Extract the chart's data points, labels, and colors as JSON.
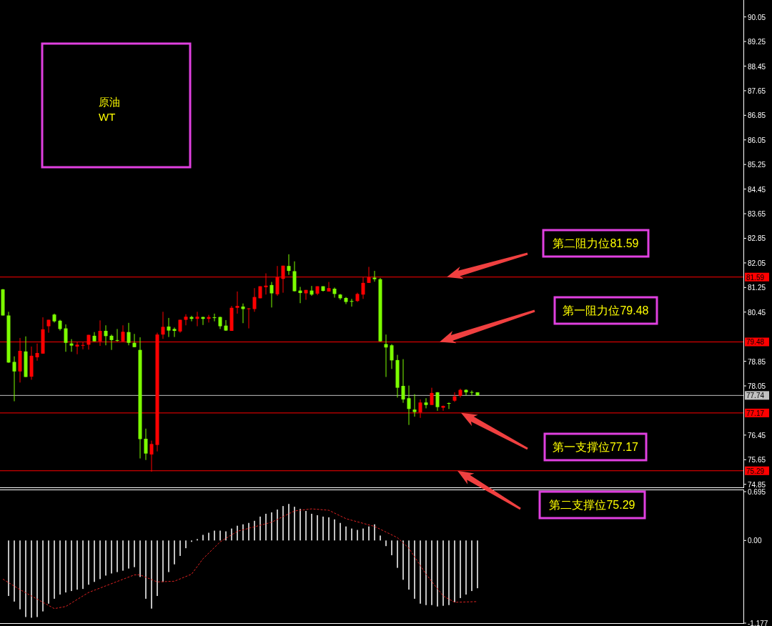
{
  "chart_data": [
    {
      "type": "candlestick",
      "title": "原油\nWT",
      "categories": [
        null,
        null,
        null,
        null,
        null,
        null,
        null,
        null,
        null,
        null,
        null,
        null,
        null,
        null,
        null,
        null,
        null,
        null,
        null,
        null,
        null,
        null,
        null,
        null,
        null,
        null,
        null,
        null,
        null,
        null,
        null,
        null,
        null,
        null,
        null,
        null,
        null,
        null,
        null,
        null,
        null,
        null,
        null,
        null,
        null,
        null,
        null,
        null,
        null,
        null,
        null,
        null,
        null,
        null,
        null,
        null,
        null,
        null,
        null,
        null,
        null,
        null,
        null,
        null,
        null,
        null,
        null,
        null,
        null,
        null,
        null,
        null,
        null,
        null,
        null,
        null,
        null,
        null,
        null,
        null,
        null,
        null,
        null,
        null,
        null,
        null,
        null,
        null,
        null,
        null,
        null,
        null,
        null,
        null,
        null,
        null,
        null,
        null,
        null,
        null,
        null,
        null,
        null,
        null,
        null,
        null,
        null,
        null,
        null,
        null,
        null,
        null,
        null,
        null,
        null,
        null,
        null,
        null,
        null,
        null,
        null,
        null,
        null,
        null,
        null,
        null,
        null,
        null,
        null,
        null
      ],
      "ohlc": [
        [
          81.19,
          81.2,
          80.34,
          80.34
        ],
        [
          80.34,
          80.46,
          78.8,
          78.81
        ],
        [
          78.83,
          79.01,
          77.55,
          78.52
        ],
        [
          78.52,
          79.61,
          78.16,
          79.19
        ],
        [
          79.17,
          79.66,
          78.34,
          78.34
        ],
        [
          78.35,
          79.33,
          78.25,
          79.03
        ],
        [
          78.98,
          79.43,
          78.87,
          79.12
        ],
        [
          79.1,
          80.28,
          79.1,
          79.89
        ],
        [
          79.99,
          80.2,
          79.78,
          80.2
        ],
        [
          80.37,
          80.4,
          80.11,
          80.15
        ],
        [
          80.17,
          80.2,
          79.85,
          79.9
        ],
        [
          79.92,
          80.05,
          79.16,
          79.45
        ],
        [
          79.43,
          79.57,
          79.16,
          79.36
        ],
        [
          79.33,
          79.49,
          79.08,
          79.39
        ],
        [
          79.37,
          79.47,
          79.24,
          79.38
        ],
        [
          79.39,
          79.71,
          79.23,
          79.71
        ],
        [
          79.68,
          79.8,
          79.5,
          79.5
        ],
        [
          79.5,
          80.18,
          79.35,
          79.84
        ],
        [
          79.84,
          80.02,
          79.37,
          79.67
        ],
        [
          79.68,
          79.72,
          79.22,
          79.54
        ],
        [
          79.54,
          79.9,
          79.49,
          79.53
        ],
        [
          79.5,
          80.02,
          79.5,
          79.81
        ],
        [
          79.8,
          80.1,
          79.37,
          79.45
        ],
        [
          79.45,
          79.74,
          79.31,
          79.31
        ],
        [
          79.22,
          79.63,
          75.69,
          76.32
        ],
        [
          76.33,
          76.66,
          75.64,
          75.85
        ],
        [
          75.82,
          76.27,
          75.26,
          76.16
        ],
        [
          76.13,
          79.78,
          75.92,
          79.72
        ],
        [
          79.72,
          80.46,
          79.58,
          79.97
        ],
        [
          79.98,
          80.26,
          79.64,
          79.85
        ],
        [
          79.9,
          79.95,
          79.64,
          79.84
        ],
        [
          79.82,
          80.2,
          79.78,
          80.2
        ],
        [
          80.2,
          80.38,
          80.02,
          80.3
        ],
        [
          80.29,
          80.33,
          80.15,
          80.23
        ],
        [
          80.23,
          80.46,
          79.99,
          80.3
        ],
        [
          80.29,
          80.3,
          80.03,
          80.23
        ],
        [
          80.23,
          80.36,
          80.11,
          80.29
        ],
        [
          80.28,
          80.4,
          80.15,
          80.26
        ],
        [
          80.29,
          80.3,
          79.9,
          79.99
        ],
        [
          80.01,
          80.19,
          79.84,
          79.85
        ],
        [
          79.84,
          80.65,
          79.84,
          80.59
        ],
        [
          80.59,
          81.12,
          80.4,
          80.65
        ],
        [
          80.63,
          80.73,
          80.09,
          80.55
        ],
        [
          80.55,
          80.58,
          79.92,
          80.57
        ],
        [
          80.55,
          81.23,
          80.46,
          80.94
        ],
        [
          80.9,
          81.29,
          80.9,
          81.29
        ],
        [
          81.26,
          81.71,
          81.02,
          81.31
        ],
        [
          81.33,
          81.43,
          80.6,
          81.06
        ],
        [
          81.03,
          81.95,
          80.98,
          81.58
        ],
        [
          81.53,
          81.96,
          81.08,
          81.96
        ],
        [
          81.95,
          82.33,
          81.66,
          81.79
        ],
        [
          81.78,
          82.1,
          81.12,
          81.13
        ],
        [
          81.15,
          81.27,
          80.74,
          81.07
        ],
        [
          81.06,
          81.17,
          80.85,
          81.17
        ],
        [
          81.15,
          81.3,
          80.98,
          81.02
        ],
        [
          81.05,
          81.29,
          81.0,
          81.29
        ],
        [
          81.29,
          81.29,
          81.12,
          81.14
        ],
        [
          81.12,
          81.43,
          81.12,
          81.23
        ],
        [
          81.21,
          81.25,
          80.92,
          81.04
        ],
        [
          81.02,
          81.04,
          80.85,
          80.9
        ],
        [
          80.91,
          80.94,
          80.71,
          80.78
        ],
        [
          80.81,
          80.88,
          80.63,
          80.8
        ],
        [
          80.81,
          81.08,
          80.78,
          81.04
        ],
        [
          81.02,
          81.58,
          80.88,
          81.4
        ],
        [
          81.4,
          81.92,
          81.4,
          81.58
        ],
        [
          81.57,
          81.79,
          81.44,
          81.52
        ],
        [
          81.52,
          81.56,
          79.49,
          79.5
        ],
        [
          79.41,
          79.72,
          78.34,
          79.3
        ],
        [
          79.37,
          79.41,
          78.6,
          78.88
        ],
        [
          78.89,
          79.06,
          77.67,
          77.99
        ],
        [
          78.05,
          78.92,
          77.5,
          77.61
        ],
        [
          77.65,
          78.06,
          76.78,
          77.3
        ],
        [
          77.28,
          77.78,
          77.05,
          77.2
        ],
        [
          77.19,
          77.61,
          77.01,
          77.51
        ],
        [
          77.51,
          77.65,
          77.32,
          77.43
        ],
        [
          77.43,
          77.99,
          77.43,
          77.82
        ],
        [
          77.84,
          77.85,
          77.24,
          77.36
        ],
        [
          77.34,
          77.41,
          77.24,
          77.4
        ],
        [
          77.49,
          77.51,
          77.3,
          77.48
        ],
        [
          77.57,
          77.84,
          77.53,
          77.71
        ],
        [
          77.73,
          77.96,
          77.67,
          77.92
        ],
        [
          77.92,
          77.94,
          77.74,
          77.84
        ],
        [
          77.85,
          77.9,
          77.74,
          77.84
        ],
        [
          77.84,
          77.84,
          77.74,
          77.74
        ],
        null,
        null,
        null,
        null,
        null,
        null,
        null,
        null,
        null,
        null,
        null,
        null,
        null,
        null,
        null,
        null,
        null,
        null,
        null,
        null,
        null,
        null,
        null,
        null,
        null,
        null,
        null,
        null,
        null,
        null,
        null,
        null,
        null,
        null,
        null,
        null,
        null,
        null,
        null,
        null,
        null,
        null,
        null,
        null,
        null,
        null
      ],
      "colors": [
        "#7cfc00",
        "#7cfc00",
        "#7cfc00",
        "#ff0000",
        "#7cfc00",
        "#ff0000",
        "#ff0000",
        "#ff0000",
        "#ff0000",
        "#7cfc00",
        "#7cfc00",
        "#7cfc00",
        "#7cfc00",
        "#ff0000",
        "#ff0000",
        "#ff0000",
        "#7cfc00",
        "#ff0000",
        "#7cfc00",
        "#7cfc00",
        "#7cfc00",
        "#ff0000",
        "#7cfc00",
        "#7cfc00",
        "#7cfc00",
        "#7cfc00",
        "#ff0000",
        "#ff0000",
        "#ff0000",
        "#7cfc00",
        "#7cfc00",
        "#ff0000",
        "#ff0000",
        "#7cfc00",
        "#ff0000",
        "#7cfc00",
        "#ff0000",
        "#7cfc00",
        "#7cfc00",
        "#7cfc00",
        "#ff0000",
        "#ff0000",
        "#7cfc00",
        "#ff0000",
        "#ff0000",
        "#ff0000",
        "#ff0000",
        "#7cfc00",
        "#ff0000",
        "#ff0000",
        "#7cfc00",
        "#7cfc00",
        "#7cfc00",
        "#ff0000",
        "#7cfc00",
        "#ff0000",
        "#7cfc00",
        "#ff0000",
        "#7cfc00",
        "#7cfc00",
        "#7cfc00",
        "#7cfc00",
        "#ff0000",
        "#ff0000",
        "#ff0000",
        "#7cfc00",
        "#7cfc00",
        "#7cfc00",
        "#7cfc00",
        "#7cfc00",
        "#7cfc00",
        "#7cfc00",
        "#7cfc00",
        "#ff0000",
        "#7cfc00",
        "#ff0000",
        "#7cfc00",
        "#ff0000",
        "#7cfc00",
        "#ff0000",
        "#ff0000",
        "#7cfc00",
        "#7cfc00",
        "#7cfc00",
        null,
        null,
        null,
        null,
        null,
        null,
        null,
        null,
        null,
        null,
        null,
        null,
        null,
        null,
        null,
        null,
        null,
        null,
        null,
        null,
        null,
        null,
        null,
        null,
        null,
        null,
        null,
        null,
        null,
        null,
        null,
        null,
        null,
        null,
        null,
        null,
        null,
        null,
        null,
        null,
        null,
        null,
        null,
        null,
        null,
        null
      ],
      "ylim": [
        74.75,
        90.6
      ],
      "yticks": [
        90.05,
        89.25,
        88.45,
        87.65,
        86.85,
        86.05,
        85.25,
        84.45,
        83.65,
        82.85,
        82.05,
        81.25,
        80.45,
        78.85,
        78.05,
        76.45,
        75.65,
        74.85
      ],
      "tick_labels": "y",
      "ref_lines": [
        {
          "axis": "y",
          "value": 81.59,
          "label": "81.59",
          "color": "#ff0000"
        },
        {
          "axis": "y",
          "value": 79.48,
          "label": "79.48",
          "color": "#ff0000"
        },
        {
          "axis": "y",
          "value": 77.74,
          "label": "77.74",
          "color": "#c0c0c0"
        },
        {
          "axis": "y",
          "value": 77.17,
          "label": "77.17",
          "color": "#ff0000"
        },
        {
          "axis": "y",
          "value": 75.29,
          "label": "75.29",
          "color": "#ff0000"
        }
      ],
      "annotations": [
        {
          "text": "第二阻力位81.59",
          "y": 81.59
        },
        {
          "text": "第一阻力位79.48",
          "y": 79.48
        },
        {
          "text": "第一支撑位77.17",
          "y": 77.17
        },
        {
          "text": "第二支撑位75.29",
          "y": 75.29
        }
      ]
    },
    {
      "type": "bar",
      "categories": [
        null,
        null,
        null,
        null,
        null,
        null,
        null,
        null,
        null,
        null,
        null,
        null,
        null,
        null,
        null,
        null,
        null,
        null,
        null,
        null,
        null,
        null,
        null,
        null,
        null,
        null,
        null,
        null,
        null,
        null,
        null,
        null,
        null,
        null,
        null,
        null,
        null,
        null,
        null,
        null,
        null,
        null,
        null,
        null,
        null,
        null,
        null,
        null,
        null,
        null,
        null,
        null,
        null,
        null,
        null,
        null,
        null,
        null,
        null,
        null,
        null,
        null,
        null,
        null,
        null,
        null,
        null,
        null,
        null,
        null,
        null,
        null,
        null,
        null,
        null,
        null,
        null,
        null,
        null,
        null,
        null,
        null,
        null,
        null,
        null,
        null,
        null,
        null,
        null,
        null,
        null,
        null,
        null,
        null,
        null,
        null,
        null,
        null,
        null,
        null,
        null,
        null,
        null,
        null,
        null,
        null,
        null,
        null,
        null,
        null,
        null,
        null,
        null,
        null,
        null,
        null,
        null,
        null,
        null,
        null,
        null,
        null,
        null,
        null,
        null,
        null,
        null,
        null,
        null,
        null
      ],
      "series": [
        {
          "type": "bar",
          "color": "#ffffff",
          "values": [
            null,
            -0.79,
            -0.87,
            -0.98,
            -1.09,
            -1.1,
            -1.09,
            -1.01,
            -0.9,
            -0.83,
            -0.77,
            -0.74,
            -0.72,
            -0.7,
            -0.69,
            -0.63,
            -0.59,
            -0.55,
            -0.5,
            -0.47,
            -0.45,
            -0.43,
            -0.4,
            -0.38,
            -0.52,
            -0.83,
            -0.97,
            -0.79,
            -0.59,
            -0.45,
            -0.34,
            -0.22,
            -0.11,
            -0.02,
            0.02,
            0.08,
            0.11,
            0.14,
            0.14,
            0.13,
            0.17,
            0.21,
            0.23,
            0.25,
            0.28,
            0.34,
            0.38,
            0.4,
            0.44,
            0.49,
            0.52,
            0.48,
            0.45,
            0.42,
            0.38,
            0.36,
            0.34,
            0.33,
            0.3,
            0.25,
            0.2,
            0.17,
            0.15,
            0.17,
            0.2,
            0.23,
            0.07,
            -0.08,
            -0.21,
            -0.39,
            -0.56,
            -0.7,
            -0.83,
            -0.9,
            -0.92,
            -0.92,
            -0.94,
            -0.93,
            -0.92,
            -0.88,
            -0.82,
            -0.77,
            -0.72,
            -0.68,
            null,
            null,
            null,
            null,
            null,
            null,
            null,
            null,
            null,
            null,
            null,
            null,
            null,
            null,
            null,
            null,
            null,
            null,
            null,
            null,
            null,
            null,
            null,
            null,
            null,
            null,
            null,
            null,
            null,
            null,
            null,
            null,
            null,
            null,
            null,
            null,
            null,
            null,
            null,
            null,
            null,
            null,
            null,
            null,
            null,
            null
          ]
        },
        {
          "type": "line",
          "color": "#dd2222",
          "line_style": "dashed",
          "values": [
            -0.55,
            null,
            null,
            -0.7,
            null,
            null,
            null,
            null,
            null,
            -0.97,
            null,
            -0.94,
            null,
            null,
            null,
            -0.74,
            null,
            null,
            null,
            null,
            null,
            null,
            null,
            -0.49,
            -0.49,
            null,
            null,
            -0.59,
            null,
            null,
            -0.58,
            null,
            null,
            -0.48,
            null,
            -0.26,
            null,
            null,
            -0.02,
            null,
            null,
            0.13,
            null,
            null,
            null,
            null,
            null,
            0.26,
            null,
            null,
            null,
            0.42,
            null,
            null,
            0.45,
            null,
            null,
            0.43,
            null,
            null,
            0.31,
            null,
            null,
            null,
            null,
            0.2,
            null,
            null,
            null,
            0.04,
            null,
            -0.11,
            null,
            null,
            -0.48,
            null,
            null,
            -0.79,
            null,
            -0.88,
            null,
            null,
            null,
            -0.87,
            null,
            null,
            null,
            null,
            null,
            null,
            null,
            null,
            null,
            null,
            null,
            null,
            null,
            null,
            null,
            null,
            null,
            null,
            null,
            null,
            null,
            null,
            null,
            null,
            null,
            null,
            null,
            null,
            null,
            null,
            null,
            null,
            null,
            null,
            null,
            null,
            null,
            null,
            null,
            null,
            null,
            null,
            null,
            null,
            null,
            null
          ]
        }
      ],
      "ylim": [
        -1.177,
        0.695
      ],
      "yticks": [
        {
          "value": 0.695,
          "label": "0.695"
        },
        {
          "value": 0,
          "label": "0.00"
        },
        {
          "value": -1.177,
          "label": "-1.177"
        }
      ],
      "tick_labels": "y"
    }
  ]
}
